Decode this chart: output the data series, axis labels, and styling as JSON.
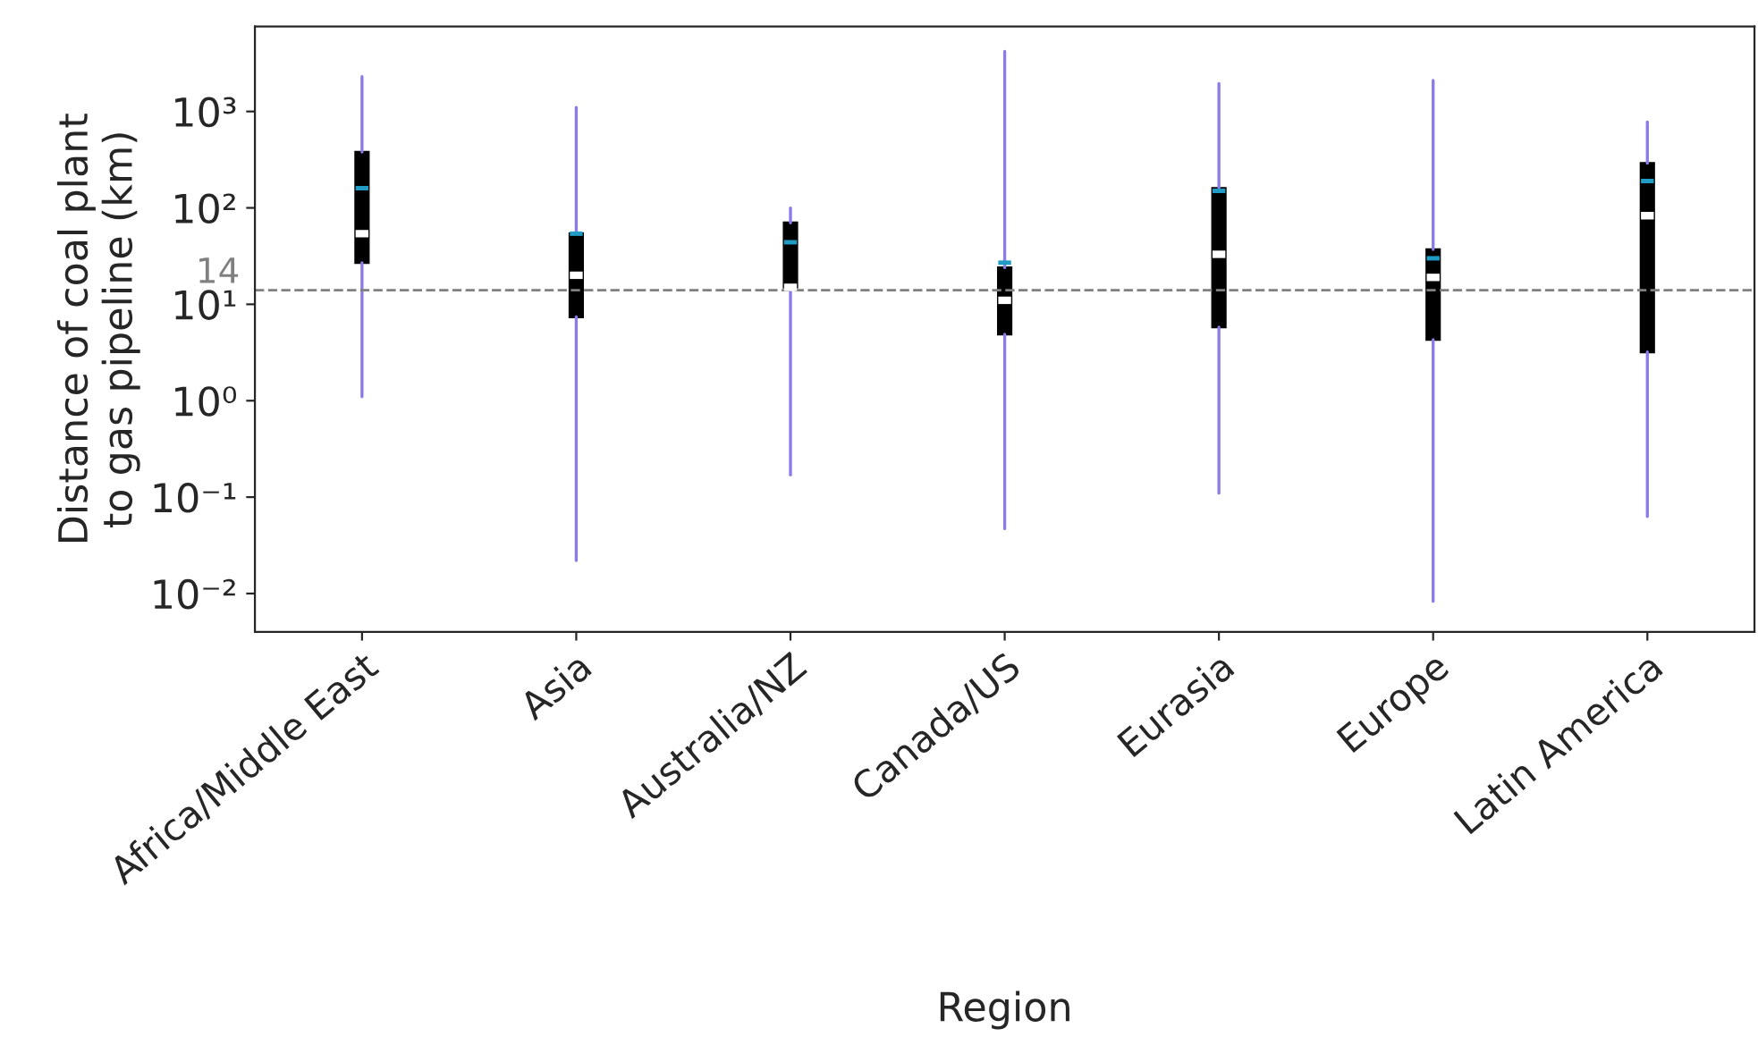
{
  "chart_data": {
    "type": "box",
    "xlabel": "Region",
    "ylabel": "Distance of coal plant\nto gas pipeline (km)",
    "categories": [
      "Africa/Middle East",
      "Asia",
      "Australia/NZ",
      "Canada/US",
      "Eurasia",
      "Europe",
      "Latin America"
    ],
    "boxes": [
      {
        "low": 1.1,
        "q1": 27,
        "median": 54,
        "q3": 380,
        "high": 2300,
        "mean": 160
      },
      {
        "low": 0.022,
        "q1": 7.4,
        "median": 20,
        "q3": 54,
        "high": 1100,
        "mean": 54
      },
      {
        "low": 0.17,
        "q1": 15,
        "median": 15,
        "q3": 70,
        "high": 100,
        "mean": 44
      },
      {
        "low": 0.047,
        "q1": 4.9,
        "median": 11,
        "q3": 24,
        "high": 4200,
        "mean": 27
      },
      {
        "low": 0.11,
        "q1": 5.8,
        "median": 33,
        "q3": 160,
        "high": 1950,
        "mean": 150
      },
      {
        "low": 0.0083,
        "q1": 4.3,
        "median": 19,
        "q3": 37,
        "high": 2100,
        "mean": 30
      },
      {
        "low": 0.063,
        "q1": 3.2,
        "median": 83,
        "q3": 290,
        "high": 780,
        "mean": 190
      }
    ],
    "color": "#000000",
    "log": true,
    "ylim": [
      0.004,
      7600
    ],
    "yticks": [
      {
        "value": 0.01,
        "label": "10⁻²"
      },
      {
        "value": 0.1,
        "label": "10⁻¹"
      },
      {
        "value": 1,
        "label": "10⁰"
      },
      {
        "value": 10,
        "label": "10¹"
      },
      {
        "value": 100,
        "label": "10²"
      },
      {
        "value": 1000,
        "label": "10³"
      }
    ],
    "ref_lines": [
      {
        "axis": "y",
        "value": 14,
        "label": "14",
        "color": "#808080",
        "line_style": "dashed"
      }
    ],
    "grid": false,
    "legend": false
  }
}
